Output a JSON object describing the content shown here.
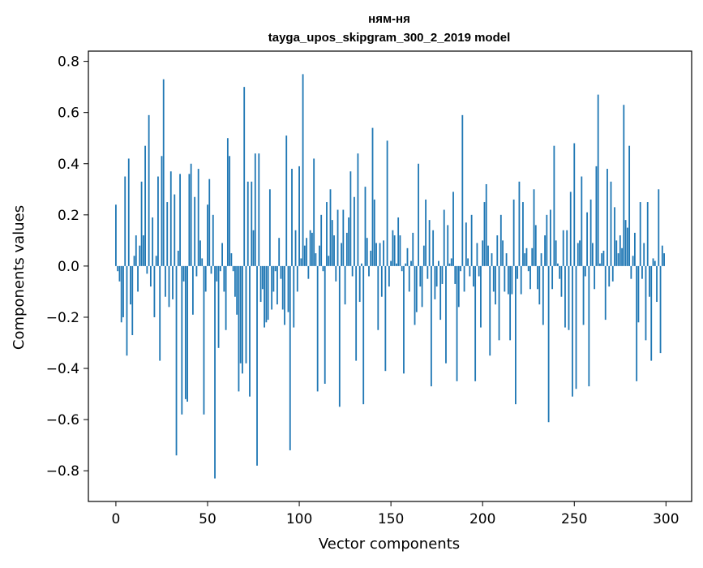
{
  "chart_data": {
    "type": "bar",
    "title": "ням-ня",
    "subtitle": "tayga_upos_skipgram_300_2_2019 model",
    "xlabel": "Vector components",
    "ylabel": "Components values",
    "xlim": [
      -15,
      314
    ],
    "ylim": [
      -0.92,
      0.84
    ],
    "xticks": [
      0,
      50,
      100,
      150,
      200,
      250,
      300
    ],
    "xtick_labels": [
      "0",
      "50",
      "100",
      "150",
      "200",
      "250",
      "300"
    ],
    "yticks": [
      -0.8,
      -0.6,
      -0.4,
      -0.2,
      0.0,
      0.2,
      0.4,
      0.6,
      0.8
    ],
    "ytick_labels": [
      "−0.8",
      "−0.6",
      "−0.4",
      "−0.2",
      "0.0",
      "0.2",
      "0.4",
      "0.6",
      "0.8"
    ],
    "bar_color": "#1f77b4",
    "grid": false,
    "n_components": 300,
    "values": [
      0.24,
      -0.02,
      -0.06,
      -0.22,
      -0.2,
      0.35,
      -0.35,
      0.42,
      -0.15,
      -0.27,
      0.04,
      0.12,
      -0.1,
      0.08,
      0.33,
      0.12,
      0.47,
      -0.03,
      0.59,
      -0.08,
      0.19,
      -0.2,
      0.04,
      0.35,
      -0.37,
      0.43,
      0.73,
      -0.12,
      0.25,
      -0.16,
      0.37,
      -0.13,
      0.28,
      -0.74,
      0.06,
      0.36,
      -0.58,
      -0.06,
      -0.52,
      -0.53,
      0.36,
      0.4,
      -0.19,
      0.27,
      -0.04,
      0.38,
      0.1,
      0.03,
      -0.58,
      -0.1,
      0.24,
      0.34,
      -0.03,
      0.2,
      -0.83,
      -0.06,
      -0.32,
      -0.02,
      0.09,
      -0.1,
      -0.25,
      0.5,
      0.43,
      0.05,
      -0.02,
      -0.12,
      -0.19,
      -0.49,
      -0.38,
      -0.42,
      0.7,
      -0.38,
      0.33,
      -0.51,
      0.33,
      0.14,
      0.44,
      -0.78,
      0.44,
      -0.14,
      -0.09,
      -0.24,
      -0.22,
      -0.21,
      0.3,
      -0.17,
      -0.1,
      -0.02,
      -0.15,
      0.11,
      -0.05,
      -0.17,
      -0.23,
      0.51,
      -0.18,
      -0.72,
      0.38,
      -0.24,
      0.14,
      -0.1,
      0.39,
      0.03,
      0.75,
      0.08,
      0.11,
      -0.05,
      0.14,
      0.13,
      0.42,
      0.05,
      -0.49,
      0.08,
      0.2,
      -0.02,
      -0.46,
      0.25,
      0.04,
      0.3,
      0.18,
      0.12,
      -0.06,
      0.22,
      -0.55,
      0.09,
      0.22,
      -0.15,
      0.13,
      0.19,
      0.37,
      -0.04,
      0.27,
      -0.37,
      0.44,
      -0.14,
      0.01,
      -0.54,
      0.31,
      0.11,
      -0.04,
      0.06,
      0.54,
      0.26,
      0.09,
      -0.25,
      0.09,
      -0.12,
      0.1,
      -0.41,
      0.49,
      -0.08,
      0.02,
      0.14,
      0.12,
      0.01,
      0.19,
      0.12,
      -0.02,
      -0.42,
      0.01,
      0.07,
      -0.1,
      0.02,
      0.13,
      -0.23,
      -0.18,
      0.4,
      -0.08,
      -0.16,
      0.08,
      0.26,
      -0.05,
      0.18,
      -0.47,
      0.14,
      -0.13,
      -0.08,
      0.02,
      -0.21,
      -0.07,
      0.22,
      -0.38,
      0.16,
      0.01,
      0.03,
      0.29,
      -0.07,
      -0.45,
      -0.16,
      -0.02,
      0.59,
      -0.1,
      0.17,
      0.03,
      -0.04,
      0.2,
      -0.08,
      -0.45,
      0.09,
      -0.04,
      -0.24,
      0.1,
      0.25,
      0.32,
      0.08,
      -0.35,
      0.05,
      -0.1,
      -0.15,
      0.12,
      -0.29,
      0.2,
      0.1,
      -0.1,
      0.05,
      -0.11,
      -0.29,
      -0.11,
      0.26,
      -0.54,
      -0.05,
      0.33,
      -0.11,
      0.25,
      0.05,
      0.07,
      -0.02,
      -0.09,
      0.07,
      0.3,
      0.16,
      -0.09,
      -0.15,
      0.05,
      -0.23,
      0.12,
      0.2,
      -0.61,
      0.22,
      -0.09,
      0.47,
      0.1,
      0.01,
      -0.05,
      -0.12,
      0.14,
      -0.24,
      0.14,
      -0.25,
      0.29,
      -0.51,
      0.48,
      -0.48,
      0.09,
      0.1,
      0.35,
      -0.23,
      -0.04,
      0.21,
      -0.47,
      0.26,
      0.09,
      -0.09,
      0.39,
      0.67,
      0.01,
      0.05,
      0.06,
      -0.21,
      0.38,
      -0.08,
      0.33,
      -0.06,
      0.23,
      0.1,
      0.05,
      0.12,
      0.07,
      0.63,
      0.18,
      0.15,
      0.47,
      -0.05,
      0.04,
      0.13,
      -0.45,
      -0.22,
      0.25,
      -0.05,
      0.09,
      -0.29,
      0.25,
      -0.12,
      -0.37,
      0.03,
      0.02,
      -0.14,
      0.3,
      -0.34,
      0.08,
      0.05
    ]
  }
}
